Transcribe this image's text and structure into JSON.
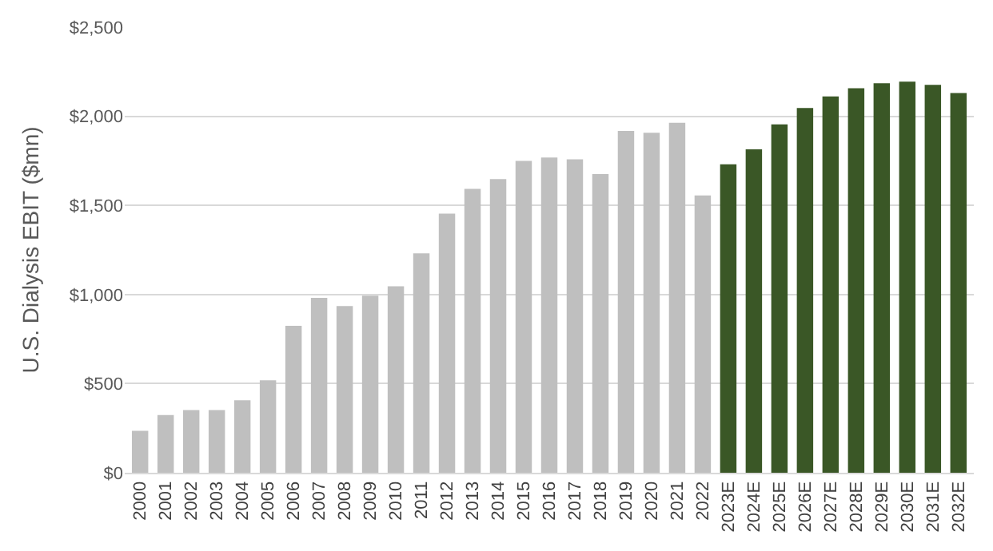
{
  "chart_data": {
    "type": "bar",
    "ylabel": "U.S. Dialysis EBIT ($mn)",
    "categories": [
      "2000",
      "2001",
      "2002",
      "2003",
      "2004",
      "2005",
      "2006",
      "2007",
      "2008",
      "2009",
      "2010",
      "2011",
      "2012",
      "2013",
      "2014",
      "2015",
      "2016",
      "2017",
      "2018",
      "2019",
      "2020",
      "2021",
      "2022",
      "2023E",
      "2024E",
      "2025E",
      "2026E",
      "2027E",
      "2028E",
      "2029E",
      "2030E",
      "2031E",
      "2032E"
    ],
    "values": [
      235,
      324,
      352,
      352,
      407,
      519,
      824,
      981,
      935,
      994,
      1046,
      1231,
      1454,
      1593,
      1648,
      1750,
      1769,
      1759,
      1676,
      1917,
      1907,
      1963,
      1556,
      1731,
      1815,
      1954,
      2046,
      2111,
      2157,
      2185,
      2194,
      2176,
      2130
    ],
    "colors": [
      "#bfbfbf",
      "#bfbfbf",
      "#bfbfbf",
      "#bfbfbf",
      "#bfbfbf",
      "#bfbfbf",
      "#bfbfbf",
      "#bfbfbf",
      "#bfbfbf",
      "#bfbfbf",
      "#bfbfbf",
      "#bfbfbf",
      "#bfbfbf",
      "#bfbfbf",
      "#bfbfbf",
      "#bfbfbf",
      "#bfbfbf",
      "#bfbfbf",
      "#bfbfbf",
      "#bfbfbf",
      "#bfbfbf",
      "#bfbfbf",
      "#bfbfbf",
      "#3a5726",
      "#3a5726",
      "#3a5726",
      "#3a5726",
      "#3a5726",
      "#3a5726",
      "#3a5726",
      "#3a5726",
      "#3a5726",
      "#3a5726"
    ],
    "ylim": [
      0,
      2500
    ],
    "yticks": [
      {
        "value": 0,
        "label": "$0"
      },
      {
        "value": 500,
        "label": "$500"
      },
      {
        "value": 1000,
        "label": "$1,000"
      },
      {
        "value": 1500,
        "label": "$1,500"
      },
      {
        "value": 2000,
        "label": "$2,000"
      },
      {
        "value": 2500,
        "label": "$2,500"
      }
    ],
    "grid": "y",
    "legend": false
  }
}
